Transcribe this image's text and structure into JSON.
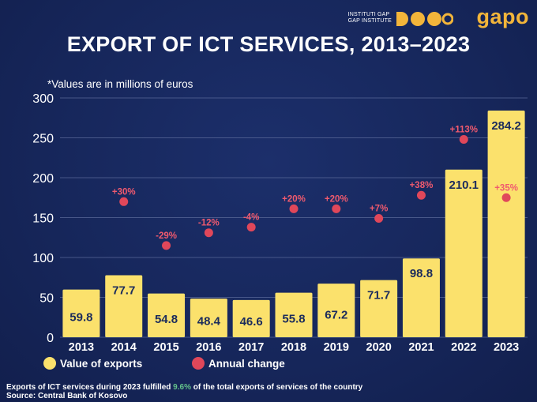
{
  "header": {
    "org_line1": "INSTITUTI GAP",
    "org_line2": "GAP INSTITUTE",
    "logo_text": "gapo",
    "title": "EXPORT OF ICT SERVICES, 2013–2023",
    "note": "*Values are in millions of euros"
  },
  "colors": {
    "background": "#16265a",
    "bar": "#fbe16c",
    "dot": "#e0475a",
    "accent": "#f3b53a",
    "highlight": "#63c08a"
  },
  "chart_data": {
    "type": "bar",
    "categories": [
      "2013",
      "2014",
      "2015",
      "2016",
      "2017",
      "2018",
      "2019",
      "2020",
      "2021",
      "2022",
      "2023"
    ],
    "series": [
      {
        "name": "Value of exports",
        "values": [
          59.8,
          77.7,
          54.8,
          48.4,
          46.6,
          55.8,
          67.2,
          71.7,
          98.8,
          210.1,
          284.2
        ],
        "labels": [
          "59.8",
          "77.7",
          "54.8",
          "48.4",
          "46.6",
          "55.8",
          "67.2",
          "71.7",
          "98.8",
          "210.1",
          "284.2"
        ]
      },
      {
        "name": "Annual change",
        "values": [
          null,
          170,
          115,
          131,
          138,
          161,
          161,
          149,
          178,
          248,
          175
        ],
        "labels": [
          "",
          "+30%",
          "-29%",
          "-12%",
          "-4%",
          "+20%",
          "+20%",
          "+7%",
          "+38%",
          "+113%",
          "+35%"
        ]
      }
    ],
    "ylim": [
      0,
      300
    ],
    "yticks": [
      0,
      50,
      100,
      150,
      200,
      250,
      300
    ],
    "grid": true,
    "legend": "bottom-left"
  },
  "footer": {
    "line1_before": "Exports of ICT services during 2023 fulfilled ",
    "line1_highlight": "9.6%",
    "line1_after": " of the total exports of services of the country",
    "source": "Source: Central Bank of Kosovo"
  }
}
